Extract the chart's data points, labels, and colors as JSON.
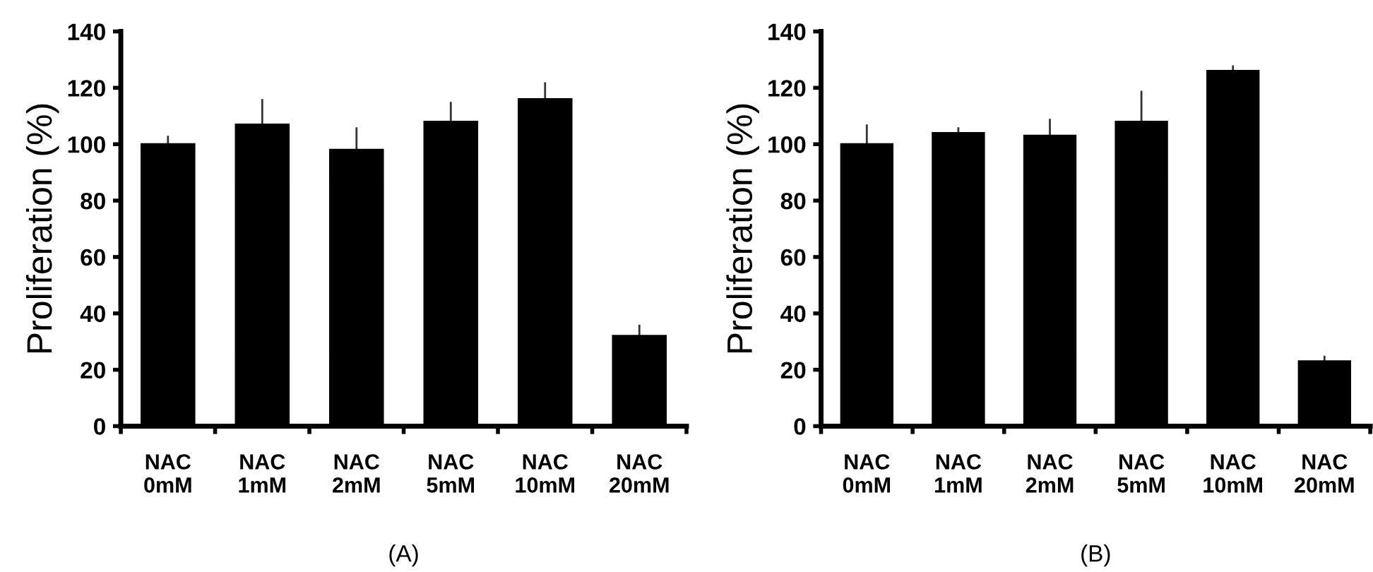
{
  "chart_data": [
    {
      "type": "bar",
      "ylabel": "Proliferation (%)",
      "categories": [
        "NAC\n0mM",
        "NAC\n1mM",
        "NAC\n2mM",
        "NAC\n5mM",
        "NAC\n10mM",
        "NAC\n20mM"
      ],
      "values": [
        100,
        107,
        98,
        108,
        116,
        32
      ],
      "errors": [
        [
          100,
          103
        ],
        [
          107,
          116
        ],
        [
          98,
          106
        ],
        [
          108,
          115
        ],
        [
          116,
          122
        ],
        [
          32,
          36
        ]
      ],
      "color": "#000000",
      "ylim": [
        0,
        140
      ],
      "yticks": [
        0,
        20,
        40,
        60,
        80,
        100,
        120,
        140
      ],
      "grid": false,
      "annotations": [
        "(A)"
      ]
    },
    {
      "type": "bar",
      "ylabel": "Proliferation (%)",
      "categories": [
        "NAC\n0mM",
        "NAC\n1mM",
        "NAC\n2mM",
        "NAC\n5mM",
        "NAC\n10mM",
        "NAC\n20mM"
      ],
      "values": [
        100,
        104,
        103,
        108,
        126,
        23
      ],
      "errors": [
        [
          100,
          107
        ],
        [
          104,
          106
        ],
        [
          103,
          109
        ],
        [
          108,
          119
        ],
        [
          126,
          128
        ],
        [
          23,
          25
        ]
      ],
      "color": "#000000",
      "ylim": [
        0,
        140
      ],
      "yticks": [
        0,
        20,
        40,
        60,
        80,
        100,
        120,
        140
      ],
      "grid": false,
      "annotations": [
        "(B)"
      ]
    }
  ]
}
